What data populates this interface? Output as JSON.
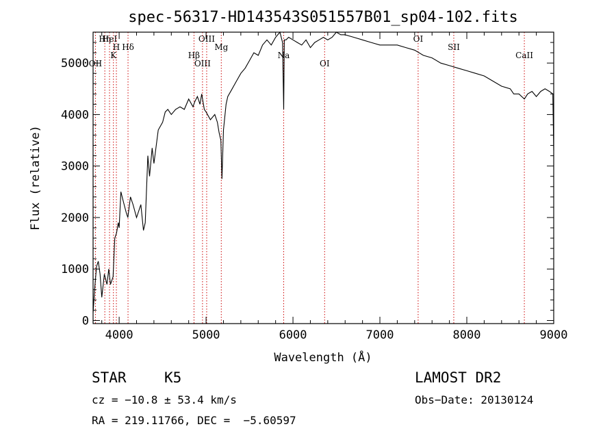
{
  "chart_data": {
    "type": "line",
    "title": "spec-56317-HD143543S051557B01_sp04-102.fits",
    "xlabel": "Wavelength (Å)",
    "ylabel": "Flux (relative)",
    "xlim": [
      3700,
      9000
    ],
    "ylim": [
      -60,
      5600
    ],
    "x_ticks": [
      4000,
      5000,
      6000,
      7000,
      8000,
      9000
    ],
    "y_ticks": [
      0,
      1000,
      2000,
      3000,
      4000,
      5000
    ],
    "grid": false,
    "series": [
      {
        "x": [
          3700,
          3720,
          3740,
          3760,
          3780,
          3800,
          3830,
          3860,
          3880,
          3900,
          3930,
          3950,
          3970,
          3990,
          4000,
          4020,
          4050,
          4080,
          4100,
          4130,
          4160,
          4200,
          4250,
          4280,
          4300,
          4330,
          4350,
          4380,
          4400,
          4450,
          4500,
          4530,
          4560,
          4600,
          4650,
          4700,
          4750,
          4800,
          4850,
          4870,
          4900,
          4930,
          4950,
          4980,
          5000,
          5050,
          5100,
          5130,
          5150,
          5170,
          5183,
          5200,
          5230,
          5250,
          5300,
          5350,
          5400,
          5450,
          5500,
          5550,
          5600,
          5650,
          5700,
          5750,
          5800,
          5850,
          5880,
          5893,
          5900,
          5920,
          5950,
          6000,
          6050,
          6100,
          6150,
          6200,
          6250,
          6300,
          6350,
          6400,
          6450,
          6500,
          6550,
          6600,
          6700,
          6800,
          6900,
          7000,
          7100,
          7200,
          7300,
          7400,
          7500,
          7600,
          7700,
          7800,
          7900,
          8000,
          8100,
          8200,
          8300,
          8400,
          8500,
          8540,
          8600,
          8662,
          8700,
          8750,
          8800,
          8850,
          8900,
          8950,
          8990,
          9000
        ],
        "y": [
          150,
          650,
          1050,
          1150,
          900,
          450,
          900,
          700,
          1000,
          700,
          850,
          1600,
          1700,
          1900,
          1800,
          2500,
          2300,
          2100,
          2000,
          2400,
          2250,
          2000,
          2250,
          1750,
          1900,
          3200,
          2800,
          3350,
          3050,
          3700,
          3850,
          4050,
          4100,
          4000,
          4100,
          4150,
          4100,
          4300,
          4150,
          4250,
          4350,
          4200,
          4400,
          4100,
          4050,
          3900,
          4000,
          3850,
          3650,
          3500,
          2750,
          3700,
          4200,
          4350,
          4500,
          4650,
          4800,
          4900,
          5050,
          5200,
          5150,
          5350,
          5450,
          5350,
          5500,
          5600,
          5400,
          4100,
          5450,
          5450,
          5500,
          5450,
          5400,
          5350,
          5450,
          5300,
          5400,
          5450,
          5500,
          5450,
          5500,
          5600,
          5550,
          5550,
          5500,
          5450,
          5400,
          5350,
          5350,
          5350,
          5300,
          5250,
          5150,
          5100,
          5000,
          4950,
          4900,
          4850,
          4800,
          4750,
          4650,
          4550,
          4500,
          4400,
          4400,
          4300,
          4400,
          4450,
          4350,
          4450,
          4500,
          4450,
          4400,
          3300
        ]
      }
    ],
    "line_markers": [
      {
        "label": "Hη",
        "x": 3835
      },
      {
        "label": "H",
        "x": 3968
      },
      {
        "label": "K",
        "x": 3934
      },
      {
        "label": "OII",
        "x": 3727
      },
      {
        "label": "HeI",
        "x": 3889
      },
      {
        "label": "Hδ",
        "x": 4102
      },
      {
        "label": "Hβ",
        "x": 4861
      },
      {
        "label": "OIII",
        "x": 4959
      },
      {
        "label": "OIII",
        "x": 5007
      },
      {
        "label": "Mg",
        "x": 5175
      },
      {
        "label": "Na",
        "x": 5893
      },
      {
        "label": "OI",
        "x": 6364
      },
      {
        "label": "OI",
        "x": 7440
      },
      {
        "label": "SII",
        "x": 7850
      },
      {
        "label": "CaII",
        "x": 8662
      }
    ]
  },
  "info": {
    "object_type": "STAR",
    "subclass": "K5",
    "survey": "LAMOST DR2",
    "redshift": "cz = −10.8 ± 53.4 km/s",
    "obs_date": "Obs−Date: 20130124",
    "coords": "RA = 219.11766, DEC =  −5.60597"
  },
  "colors": {
    "line_marker": "#cc0000",
    "spectrum": "#000000"
  }
}
